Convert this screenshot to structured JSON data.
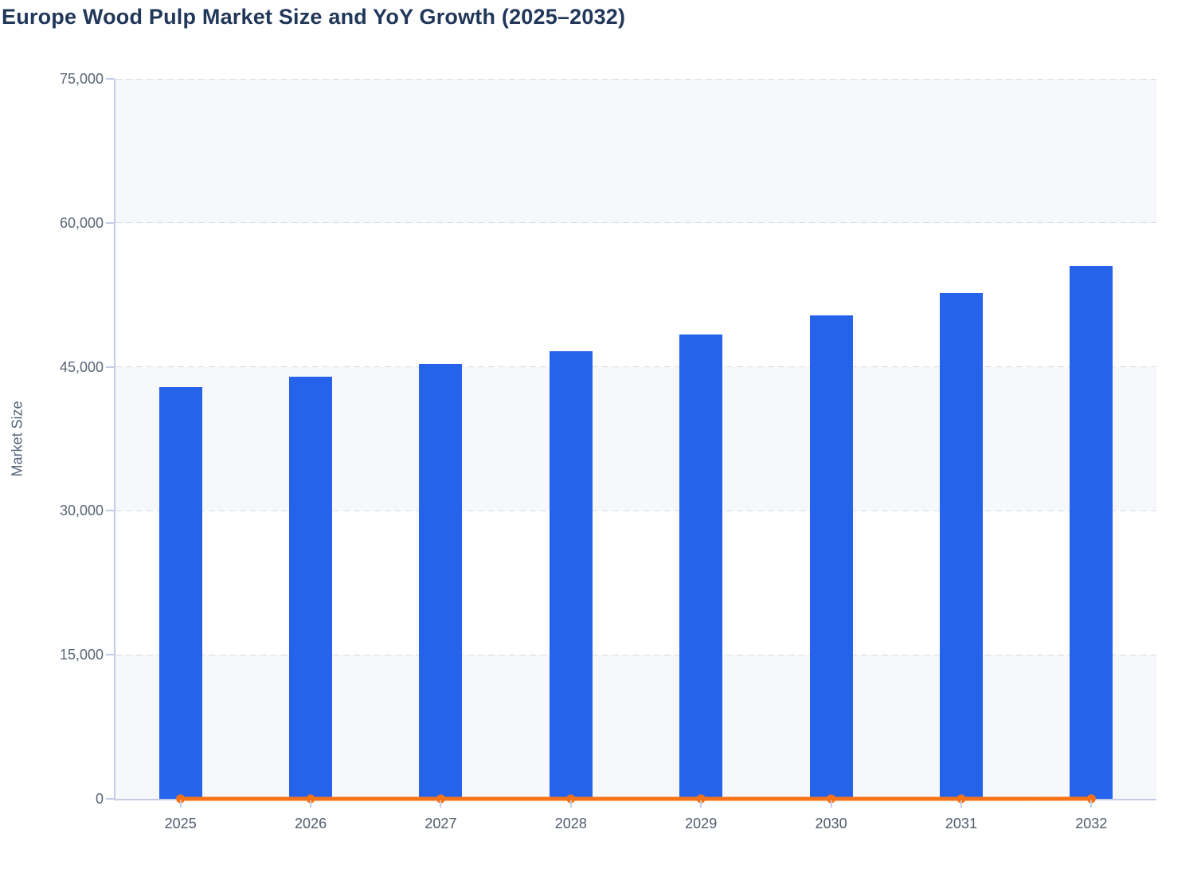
{
  "title": "Europe Wood Pulp Market Size and YoY Growth (2025–2032)",
  "chart_data": {
    "type": "combo-bar-line",
    "title": "Europe Wood Pulp Market Size and YoY Growth (2025–2032)",
    "categories": [
      "2025",
      "2026",
      "2027",
      "2028",
      "2029",
      "2030",
      "2031",
      "2032"
    ],
    "series": [
      {
        "name": "Market Size",
        "type": "bar",
        "color": "#2563eb",
        "values": [
          42900,
          44000,
          45270,
          46630,
          48400,
          50390,
          52690,
          55530
        ]
      },
      {
        "name": "YoY Growth",
        "type": "line",
        "color": "#f97316",
        "values": [
          0,
          2.5,
          2.9,
          3.0,
          3.8,
          4.1,
          4.6,
          5.4
        ],
        "note": "Percent values plotted on the shared 0–75,000 axis, so the line hugs the zero baseline"
      }
    ],
    "xlabel": "",
    "ylabel": "Market Size",
    "ylim": [
      0,
      75000
    ],
    "yticks": [
      0,
      15000,
      30000,
      45000,
      60000,
      75000
    ],
    "ytick_labels": [
      "0",
      "15,000",
      "30,000",
      "45,000",
      "60,000",
      "75,000"
    ],
    "grid": "horizontal-dashed",
    "legend_position": "none",
    "plot_band_fill": "alternating"
  },
  "colors": {
    "bar": "#2563eb",
    "line": "#f97316",
    "title_text": "#21375a",
    "axis_text": "#5a6577",
    "axis_line": "#c3cbe6",
    "gridline": "#d8dce3",
    "band": "#f7f8fb",
    "background": "#ffffff"
  }
}
